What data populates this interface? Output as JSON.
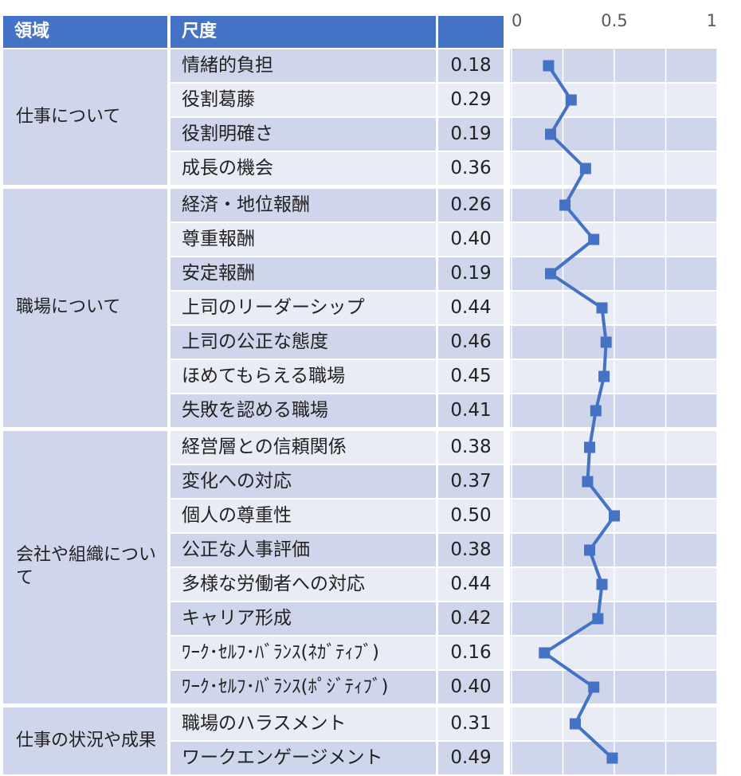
{
  "header": {
    "domain": "領域",
    "scale": "尺度",
    "value": ""
  },
  "colors": {
    "header": "#4472c4",
    "row_dark": "#cfd5ea",
    "row_light": "#e9ebf5",
    "line": "#4472c4"
  },
  "groups": [
    {
      "label": "仕事について",
      "items": [
        {
          "scale": "情緒的負担",
          "value": "0.18"
        },
        {
          "scale": "役割葛藤",
          "value": "0.29"
        },
        {
          "scale": "役割明確さ",
          "value": "0.19"
        },
        {
          "scale": "成長の機会",
          "value": "0.36"
        }
      ]
    },
    {
      "label": "職場について",
      "items": [
        {
          "scale": "経済・地位報酬",
          "value": "0.26"
        },
        {
          "scale": "尊重報酬",
          "value": "0.40"
        },
        {
          "scale": "安定報酬",
          "value": "0.19"
        },
        {
          "scale": "上司のリーダーシップ",
          "value": "0.44"
        },
        {
          "scale": "上司の公正な態度",
          "value": "0.46"
        },
        {
          "scale": "ほめてもらえる職場",
          "value": "0.45"
        },
        {
          "scale": "失敗を認める職場",
          "value": "0.41"
        }
      ]
    },
    {
      "label": "会社や組織について",
      "items": [
        {
          "scale": "経営層との信頼関係",
          "value": "0.38"
        },
        {
          "scale": "変化への対応",
          "value": "0.37"
        },
        {
          "scale": "個人の尊重性",
          "value": "0.50"
        },
        {
          "scale": "公正な人事評価",
          "value": "0.38"
        },
        {
          "scale": "多様な労働者への対応",
          "value": "0.44"
        },
        {
          "scale": "キャリア形成",
          "value": "0.42"
        },
        {
          "scale": "ﾜｰｸ･ｾﾙﾌ･ﾊﾞﾗﾝｽ(ﾈｶﾞﾃｨﾌﾞ)",
          "value": "0.16"
        },
        {
          "scale": "ﾜｰｸ･ｾﾙﾌ･ﾊﾞﾗﾝｽ(ﾎﾟｼﾞﾃｨﾌﾞ)",
          "value": "0.40"
        }
      ]
    },
    {
      "label": "仕事の状況や成果",
      "items": [
        {
          "scale": "職場のハラスメント",
          "value": "0.31"
        },
        {
          "scale": "ワークエンゲージメント",
          "value": "0.49"
        }
      ]
    }
  ],
  "chart_data": {
    "type": "line",
    "orientation": "horizontal-values-vertical-categories",
    "categories": [
      "情緒的負担",
      "役割葛藤",
      "役割明確さ",
      "成長の機会",
      "経済・地位報酬",
      "尊重報酬",
      "安定報酬",
      "上司のリーダーシップ",
      "上司の公正な態度",
      "ほめてもらえる職場",
      "失敗を認める職場",
      "経営層との信頼関係",
      "変化への対応",
      "個人の尊重性",
      "公正な人事評価",
      "多様な労働者への対応",
      "キャリア形成",
      "ﾜｰｸ･ｾﾙﾌ･ﾊﾞﾗﾝｽ(ﾈｶﾞﾃｨﾌﾞ)",
      "ﾜｰｸ･ｾﾙﾌ･ﾊﾞﾗﾝｽ(ﾎﾟｼﾞﾃｨﾌﾞ)",
      "職場のハラスメント",
      "ワークエンゲージメント"
    ],
    "values": [
      0.18,
      0.29,
      0.19,
      0.36,
      0.26,
      0.4,
      0.19,
      0.44,
      0.46,
      0.45,
      0.41,
      0.38,
      0.37,
      0.5,
      0.38,
      0.44,
      0.42,
      0.16,
      0.4,
      0.31,
      0.49
    ],
    "xlim": [
      0,
      1
    ],
    "xticks": [
      "0",
      "0.5",
      "1"
    ],
    "grid": true,
    "marker": "square"
  }
}
